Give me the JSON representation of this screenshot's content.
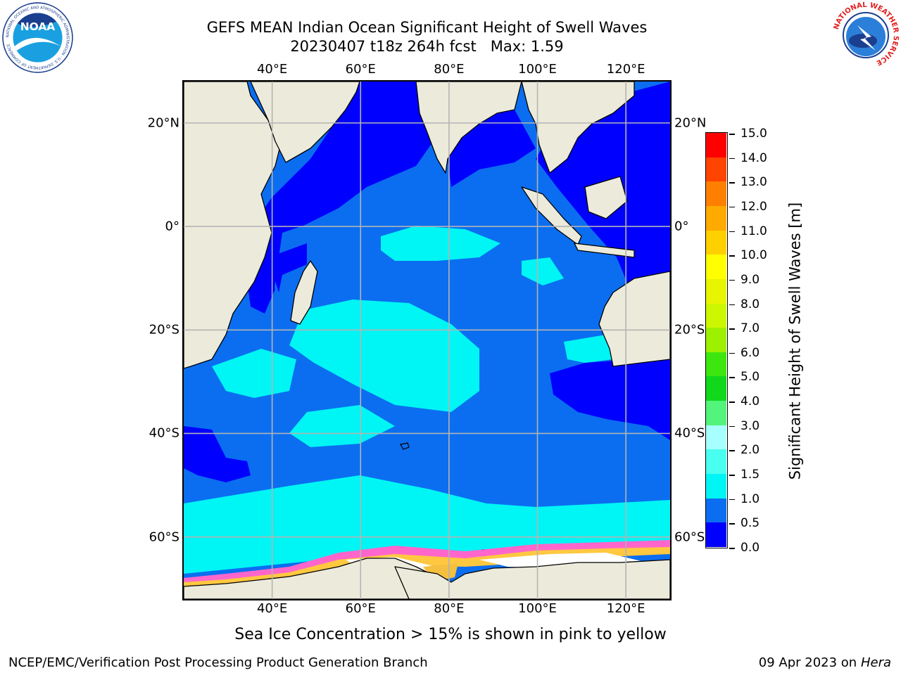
{
  "title": {
    "line1": "GEFS MEAN Indian Ocean Significant Height of Swell Waves",
    "line2": "20230407 t18z 264h fcst   Max: 1.59"
  },
  "logos": {
    "left": {
      "name": "noaa-logo",
      "text": "NOAA",
      "ring_text": "NATIONAL OCEANIC AND ATMOSPHERIC ADMINISTRATION · U.S. DEPARTMENT OF COMMERCE"
    },
    "right": {
      "name": "nws-logo",
      "ring_text": "NATIONAL WEATHER SERVICE"
    }
  },
  "map": {
    "projection": "equirectangular",
    "lon_range": [
      20,
      130
    ],
    "lat_range": [
      -72,
      28
    ],
    "longitude_ticks": [
      {
        "value": 40,
        "label": "40°E"
      },
      {
        "value": 60,
        "label": "60°E"
      },
      {
        "value": 80,
        "label": "80°E"
      },
      {
        "value": 100,
        "label": "100°E"
      },
      {
        "value": 120,
        "label": "120°E"
      }
    ],
    "latitude_ticks": [
      {
        "value": 20,
        "label": "20°N"
      },
      {
        "value": 0,
        "label": "0°"
      },
      {
        "value": -20,
        "label": "20°S"
      },
      {
        "value": -40,
        "label": "40°S"
      },
      {
        "value": -60,
        "label": "60°S"
      }
    ],
    "gridlines": true,
    "colors": {
      "land": "#ecebdb",
      "coast": "#000000",
      "grid": "#b4b4b4",
      "ocean_default": "#0b6ef0"
    }
  },
  "colorbar": {
    "title": "Significant Height of Swell Waves [m]",
    "levels": [
      0.0,
      0.5,
      1.0,
      1.5,
      2.0,
      3.0,
      4.0,
      5.0,
      6.0,
      7.0,
      8.0,
      9.0,
      10.0,
      11.0,
      12.0,
      13.0,
      14.0,
      15.0
    ],
    "labels": [
      "0.0",
      "0.5",
      "1.0",
      "1.5",
      "2.0",
      "3.0",
      "4.0",
      "5.0",
      "6.0",
      "7.0",
      "8.0",
      "9.0",
      "10.0",
      "11.0",
      "12.0",
      "13.0",
      "14.0",
      "15.0"
    ],
    "colors": [
      "#0000ff",
      "#0b6ef0",
      "#00f5f5",
      "#48fff0",
      "#a8ffff",
      "#52f47c",
      "#11d81a",
      "#3ee610",
      "#9df000",
      "#cdf700",
      "#e7f500",
      "#ffff00",
      "#ffd000",
      "#ffaa00",
      "#ff8000",
      "#ff4400",
      "#ff0000"
    ]
  },
  "ice_note": "Sea Ice Concentration > 15% is shown in pink to yellow",
  "footer": {
    "left": "NCEP/EMC/Verification Post Processing Product Generation Branch",
    "right_date": "09 Apr 2023 on",
    "right_host": "Hera"
  }
}
